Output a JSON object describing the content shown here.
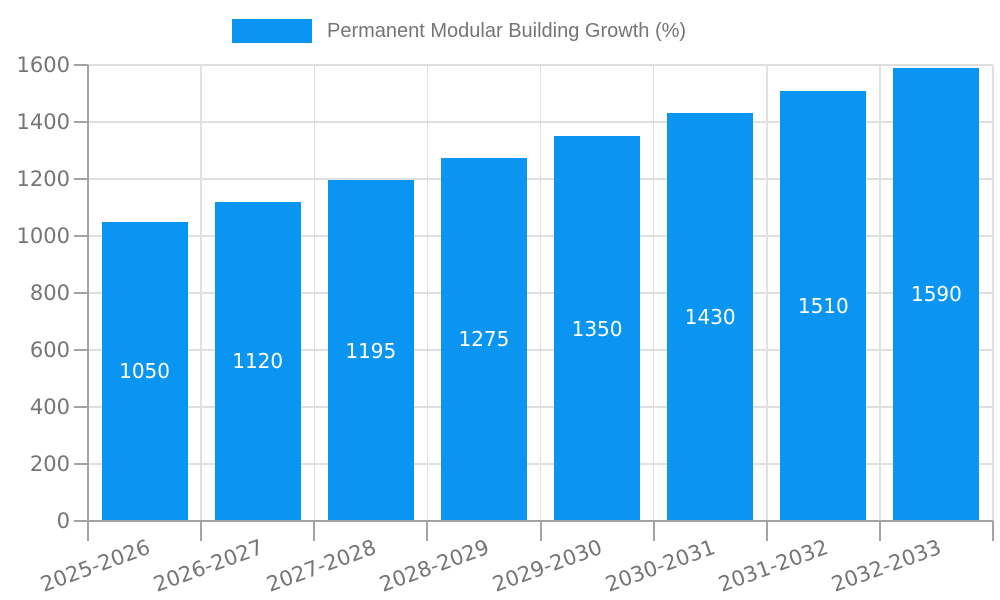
{
  "legend": {
    "label": "Permanent Modular Building Growth (%)"
  },
  "chart_data": {
    "type": "bar",
    "title": "Permanent Modular Building Growth (%)",
    "categories": [
      "2025-2026",
      "2026-2027",
      "2027-2028",
      "2028-2029",
      "2029-2030",
      "2030-2031",
      "2031-2032",
      "2032-2033"
    ],
    "values": [
      1050,
      1120,
      1195,
      1275,
      1350,
      1430,
      1510,
      1590
    ],
    "bar_labels": [
      "1050",
      "1120",
      "1195",
      "1275",
      "1350",
      "1430",
      "1510",
      "1590"
    ],
    "xlabel": "",
    "ylabel": "",
    "ylim": [
      0,
      1600
    ],
    "ytick_step": 200,
    "yticks": [
      0,
      200,
      400,
      600,
      800,
      1000,
      1200,
      1400,
      1600
    ],
    "grid": true,
    "legend_position": "top",
    "colors": {
      "bar": "#0b95f2",
      "grid": "#e0e0e0",
      "axis": "#a3a3a3",
      "tick_text": "#757575",
      "legend_text": "#757575",
      "bar_label": "#ffffff",
      "background": "#ffffff"
    }
  }
}
